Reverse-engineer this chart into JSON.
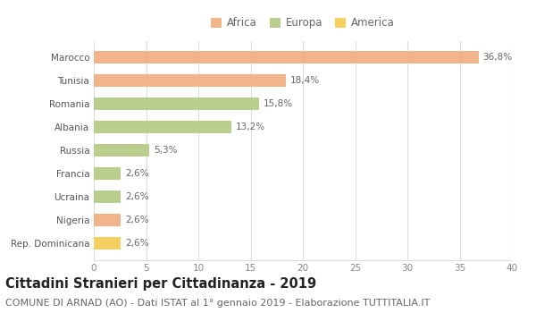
{
  "categories": [
    "Marocco",
    "Tunisia",
    "Romania",
    "Albania",
    "Russia",
    "Francia",
    "Ucraina",
    "Nigeria",
    "Rep. Dominicana"
  ],
  "values": [
    36.8,
    18.4,
    15.8,
    13.2,
    5.3,
    2.6,
    2.6,
    2.6,
    2.6
  ],
  "labels": [
    "36,8%",
    "18,4%",
    "15,8%",
    "13,2%",
    "5,3%",
    "2,6%",
    "2,6%",
    "2,6%",
    "2,6%"
  ],
  "colors": [
    "#F2B48A",
    "#F2B48A",
    "#BACF8E",
    "#BACF8E",
    "#BACF8E",
    "#BACF8E",
    "#BACF8E",
    "#F2B48A",
    "#F5D060"
  ],
  "legend_labels": [
    "Africa",
    "Europa",
    "America"
  ],
  "legend_colors": [
    "#F2B48A",
    "#BACF8E",
    "#F5D060"
  ],
  "title": "Cittadini Stranieri per Cittadinanza - 2019",
  "subtitle": "COMUNE DI ARNAD (AO) - Dati ISTAT al 1° gennaio 2019 - Elaborazione TUTTITALIA.IT",
  "xlim": [
    0,
    40
  ],
  "xticks": [
    0,
    5,
    10,
    15,
    20,
    25,
    30,
    35,
    40
  ],
  "background_color": "#ffffff",
  "grid_color": "#dddddd",
  "bar_height": 0.55,
  "title_fontsize": 10.5,
  "subtitle_fontsize": 8,
  "label_fontsize": 7.5,
  "tick_fontsize": 7.5,
  "legend_fontsize": 8.5
}
